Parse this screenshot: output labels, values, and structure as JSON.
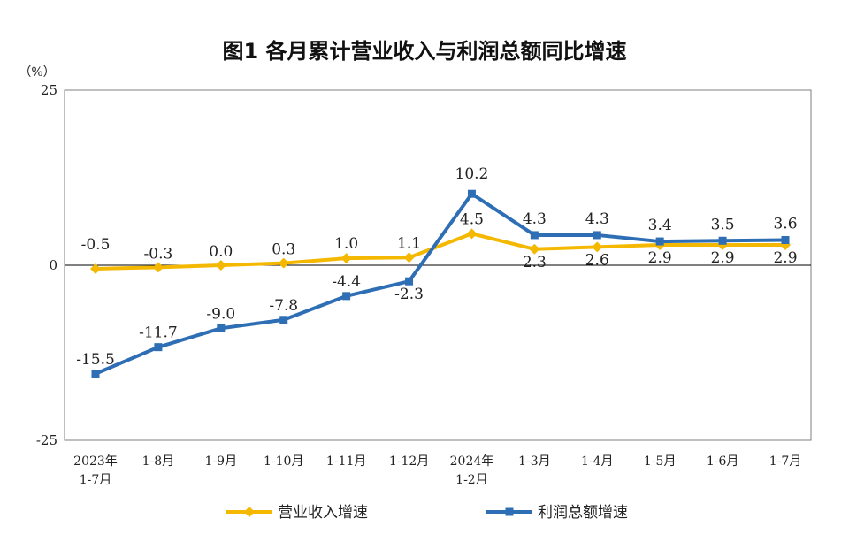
{
  "chart_data": {
    "type": "line",
    "title": "图1  各月累计营业收入与利润总额同比增速",
    "unit": "（%）",
    "ylim": [
      -25,
      25
    ],
    "yticks": [
      "25",
      "0",
      "-25"
    ],
    "categories": [
      [
        "2023年",
        "1-7月"
      ],
      [
        "1-8月"
      ],
      [
        "1-9月"
      ],
      [
        "1-10月"
      ],
      [
        "1-11月"
      ],
      [
        "1-12月"
      ],
      [
        "2024年",
        "1-2月"
      ],
      [
        "1-3月"
      ],
      [
        "1-4月"
      ],
      [
        "1-5月"
      ],
      [
        "1-6月"
      ],
      [
        "1-7月"
      ]
    ],
    "series": [
      {
        "name": "营业收入增速",
        "color": "#F5B800",
        "marker": "diamond",
        "values": [
          -0.5,
          -0.3,
          0.0,
          0.3,
          1.0,
          1.1,
          4.5,
          2.3,
          2.6,
          2.9,
          2.9,
          2.9
        ],
        "labels": [
          "-0.5",
          "-0.3",
          "0.0",
          "0.3",
          "1.0",
          "1.1",
          "4.5",
          "2.3",
          "2.6",
          "2.9",
          "2.9",
          "2.9"
        ]
      },
      {
        "name": "利润总额增速",
        "color": "#2E6EB5",
        "marker": "square",
        "values": [
          -15.5,
          -11.7,
          -9.0,
          -7.8,
          -4.4,
          -2.3,
          10.2,
          4.3,
          4.3,
          3.4,
          3.5,
          3.6
        ],
        "labels": [
          "-15.5",
          "-11.7",
          "-9.0",
          "-7.8",
          "-4.4",
          "-2.3",
          "10.2",
          "4.3",
          "4.3",
          "3.4",
          "3.5",
          "3.6"
        ]
      }
    ],
    "grid": false,
    "legend_position": "bottom"
  }
}
